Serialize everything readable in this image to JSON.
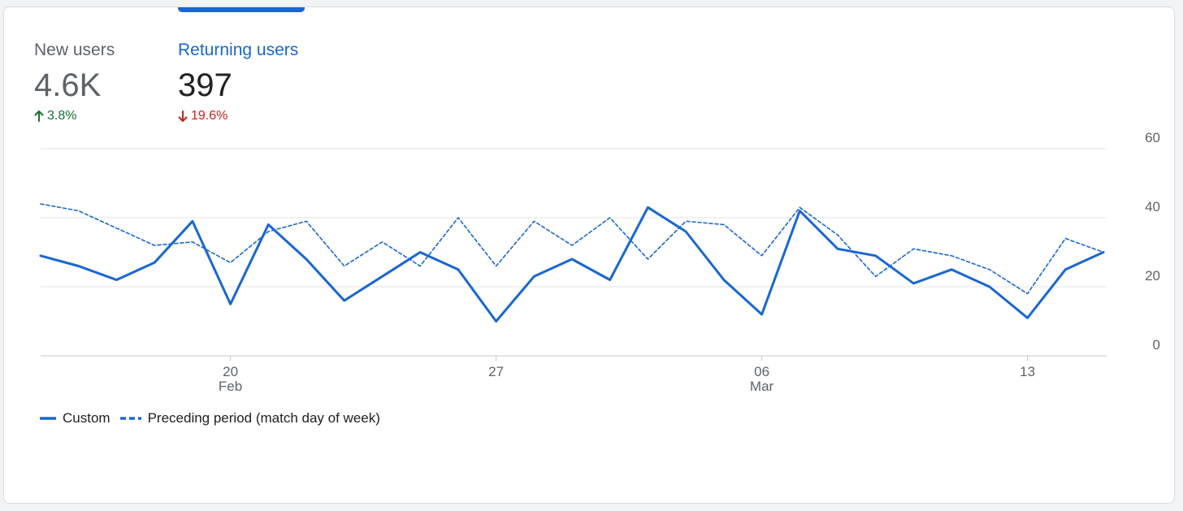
{
  "metrics": {
    "new_users": {
      "label": "New users",
      "value": "4.6K",
      "change": "3.8%",
      "direction": "up"
    },
    "returning_users": {
      "label": "Returning users",
      "value": "397",
      "change": "19.6%",
      "direction": "down"
    }
  },
  "legend": {
    "custom": "Custom",
    "preceding": "Preceding period (match day of week)"
  },
  "colors": {
    "accent": "#1967d2",
    "up": "#137333",
    "down": "#c5221f"
  },
  "chart_data": {
    "type": "line",
    "title": "",
    "xlabel": "",
    "ylabel": "",
    "ylim": [
      0,
      60
    ],
    "yticks": [
      0,
      20,
      40,
      60
    ],
    "x": [
      "Feb 15",
      "Feb 16",
      "Feb 17",
      "Feb 18",
      "Feb 19",
      "Feb 20",
      "Feb 21",
      "Feb 22",
      "Feb 23",
      "Feb 24",
      "Feb 25",
      "Feb 26",
      "Feb 27",
      "Feb 28",
      "Mar 1",
      "Mar 2",
      "Mar 3",
      "Mar 4",
      "Mar 5",
      "Mar 6",
      "Mar 7",
      "Mar 8",
      "Mar 9",
      "Mar 10",
      "Mar 11",
      "Mar 12",
      "Mar 13",
      "Mar 14",
      "Mar 15"
    ],
    "xticks": [
      {
        "index": 5,
        "label": "20",
        "sublabel": "Feb"
      },
      {
        "index": 12,
        "label": "27",
        "sublabel": ""
      },
      {
        "index": 19,
        "label": "06",
        "sublabel": "Mar"
      },
      {
        "index": 26,
        "label": "13",
        "sublabel": ""
      }
    ],
    "series": [
      {
        "name": "Custom",
        "style": "solid",
        "values": [
          29,
          26,
          22,
          27,
          39,
          15,
          38,
          28,
          16,
          23,
          30,
          25,
          10,
          23,
          28,
          22,
          43,
          36,
          22,
          12,
          42,
          31,
          29,
          21,
          25,
          20,
          11,
          25,
          30
        ]
      },
      {
        "name": "Preceding period (match day of week)",
        "style": "dashed",
        "values": [
          44,
          42,
          37,
          32,
          33,
          27,
          36,
          39,
          26,
          33,
          26,
          40,
          26,
          39,
          32,
          40,
          28,
          39,
          38,
          29,
          43,
          35,
          23,
          31,
          29,
          25,
          18,
          34,
          30
        ]
      }
    ],
    "grid": true,
    "legend_position": "bottom-left"
  }
}
